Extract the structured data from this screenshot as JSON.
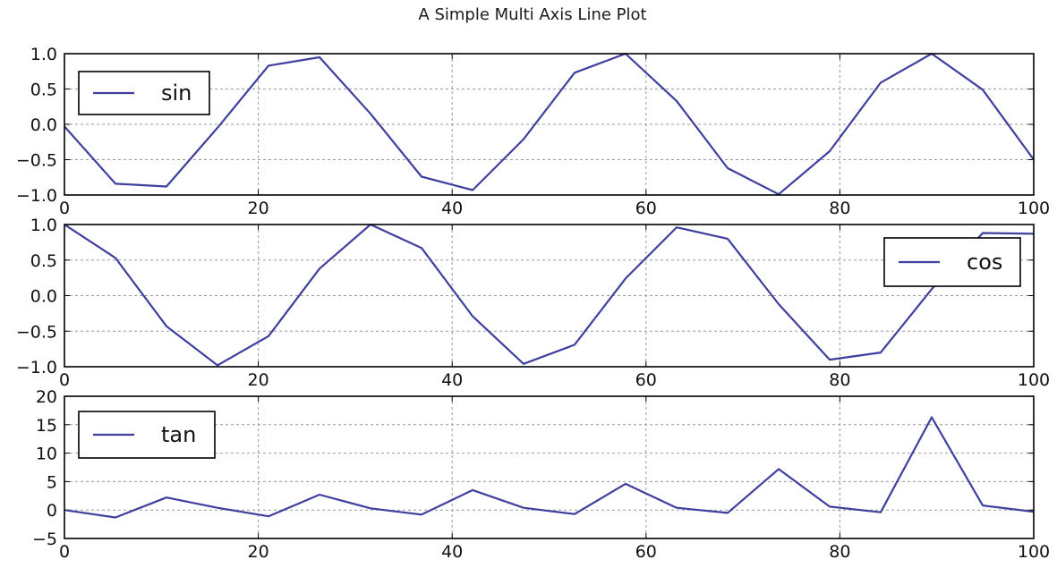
{
  "title": "A Simple Multi Axis Line Plot",
  "line_color": "#3f3f9f",
  "chart_data": [
    {
      "type": "line",
      "title": "",
      "xlabel": "",
      "ylabel": "",
      "xlim": [
        0,
        100
      ],
      "ylim": [
        -1.0,
        1.0
      ],
      "grid": true,
      "legend_position": "upper-left",
      "x_ticks": [
        "0",
        "20",
        "40",
        "60",
        "80",
        "100"
      ],
      "y_ticks": [
        "−1.0",
        "−0.5",
        "0.0",
        "0.5",
        "1.0"
      ],
      "series": [
        {
          "name": "sin",
          "x": [
            0,
            5.26,
            10.53,
            15.79,
            21.05,
            26.32,
            31.58,
            36.84,
            42.11,
            47.37,
            52.63,
            57.89,
            63.16,
            68.42,
            73.68,
            78.95,
            84.21,
            89.47,
            94.74,
            100
          ],
          "values": [
            -0.03,
            -0.84,
            -0.88,
            -0.05,
            0.83,
            0.95,
            0.15,
            -0.74,
            -0.93,
            -0.21,
            0.73,
            1.0,
            0.33,
            -0.62,
            -0.99,
            -0.38,
            0.59,
            1.0,
            0.49,
            -0.5
          ]
        }
      ]
    },
    {
      "type": "line",
      "title": "",
      "xlabel": "",
      "ylabel": "",
      "xlim": [
        0,
        100
      ],
      "ylim": [
        -1.0,
        1.0
      ],
      "grid": true,
      "legend_position": "center-right",
      "x_ticks": [
        "0",
        "20",
        "40",
        "60",
        "80",
        "100"
      ],
      "y_ticks": [
        "−1.0",
        "−0.5",
        "0.0",
        "0.5",
        "1.0"
      ],
      "series": [
        {
          "name": "cos",
          "x": [
            0,
            5.26,
            10.53,
            15.79,
            21.05,
            26.32,
            31.58,
            36.84,
            42.11,
            47.37,
            52.63,
            57.89,
            63.16,
            68.42,
            73.68,
            78.95,
            84.21,
            89.47,
            94.74,
            100
          ],
          "values": [
            1.0,
            0.53,
            -0.43,
            -0.98,
            -0.57,
            0.38,
            1.0,
            0.67,
            -0.29,
            -0.96,
            -0.69,
            0.24,
            0.96,
            0.8,
            -0.12,
            -0.9,
            -0.8,
            0.09,
            0.88,
            0.87
          ]
        }
      ]
    },
    {
      "type": "line",
      "title": "",
      "xlabel": "",
      "ylabel": "",
      "xlim": [
        0,
        100
      ],
      "ylim": [
        -5,
        20
      ],
      "grid": true,
      "legend_position": "upper-left",
      "x_ticks": [
        "0",
        "20",
        "40",
        "60",
        "80",
        "100"
      ],
      "y_ticks": [
        "−5",
        "0",
        "5",
        "10",
        "15",
        "20"
      ],
      "series": [
        {
          "name": "tan",
          "x": [
            0,
            5.26,
            10.53,
            15.79,
            21.05,
            26.32,
            31.58,
            36.84,
            42.11,
            47.37,
            52.63,
            57.89,
            63.16,
            68.42,
            73.68,
            78.95,
            84.21,
            89.47,
            94.74,
            100
          ],
          "values": [
            0.0,
            -1.3,
            2.2,
            0.4,
            -1.1,
            2.7,
            0.3,
            -0.8,
            3.5,
            0.4,
            -0.7,
            4.6,
            0.4,
            -0.5,
            7.2,
            0.6,
            -0.4,
            16.3,
            0.8,
            -0.3
          ]
        }
      ]
    }
  ]
}
